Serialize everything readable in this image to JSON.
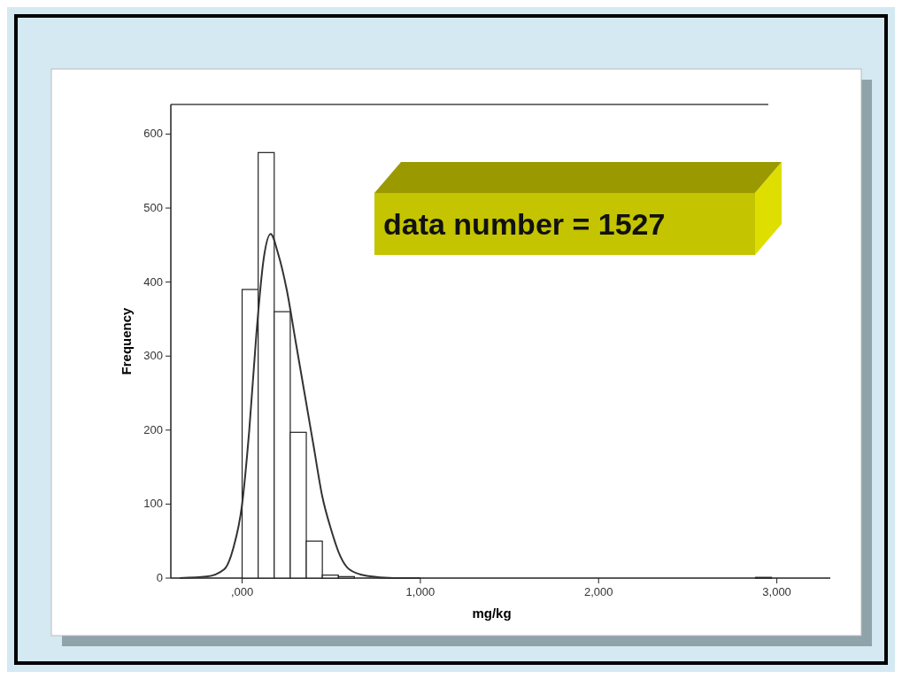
{
  "chart_data": {
    "type": "histogram",
    "xlabel": "mg/kg",
    "ylabel": "Frequency",
    "bins": [
      0,
      90,
      180,
      270,
      360,
      450,
      540,
      630,
      720,
      810,
      900,
      990,
      1080,
      1170,
      1260,
      1350,
      1440,
      1530,
      1620,
      1710,
      1800,
      1890,
      1980,
      2070,
      2160,
      2250,
      2340,
      2430,
      2520,
      2610,
      2700,
      2790,
      2880,
      2970
    ],
    "values": [
      390,
      575,
      360,
      197,
      50,
      4,
      2,
      0,
      0,
      0,
      0,
      0,
      0,
      0,
      0,
      0,
      0,
      0,
      0,
      0,
      0,
      0,
      0,
      0,
      0,
      0,
      0,
      0,
      0,
      0,
      0,
      0,
      1
    ],
    "color": "#ffffff",
    "series": [
      {
        "type": "line",
        "color": "#333333",
        "x": [
          -350,
          -200,
          -100,
          -50,
          0,
          40,
          80,
          120,
          160,
          200,
          250,
          300,
          350,
          400,
          450,
          500,
          550,
          600,
          700,
          850,
          1000
        ],
        "values": [
          0,
          2,
          12,
          40,
          100,
          200,
          330,
          430,
          465,
          440,
          390,
          320,
          250,
          180,
          110,
          65,
          30,
          12,
          3,
          0,
          0
        ]
      }
    ],
    "xlim": [
      -400,
      3300
    ],
    "xticks": [
      {
        "value": 0,
        "label": ",000"
      },
      {
        "value": 1000,
        "label": "1,000"
      },
      {
        "value": 2000,
        "label": "2,000"
      },
      {
        "value": 3000,
        "label": "3,000"
      }
    ],
    "ylim": [
      0,
      640
    ],
    "yticks": [
      0,
      100,
      200,
      300,
      400,
      500,
      600
    ],
    "annotations": [
      "data number  = 1527"
    ]
  }
}
